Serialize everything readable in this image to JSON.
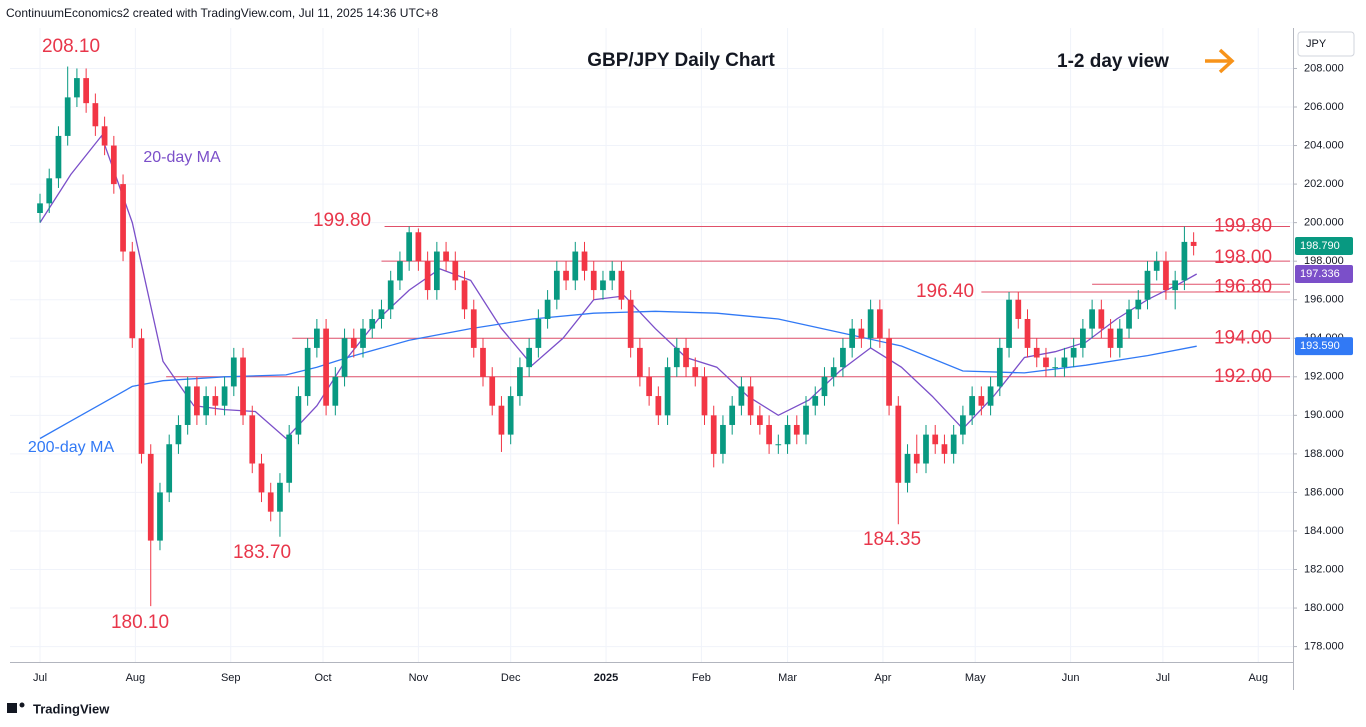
{
  "header": "ContinuumEconomics2 created with TradingView.com, Jul 11, 2025 14:36 UTC+8",
  "footer": "TradingView",
  "chart_data": {
    "type": "candlestick",
    "title": "GBP/JPY Daily Chart",
    "subtitle": "1-2 day view",
    "currency": "JPY",
    "up_color": "#089981",
    "down_color": "#f23645",
    "xlim": [
      -9.75,
      407.3
    ],
    "xticks": [
      {
        "value": 0,
        "label": "Jul"
      },
      {
        "value": 31,
        "label": "Aug"
      },
      {
        "value": 62,
        "label": "Sep"
      },
      {
        "value": 92,
        "label": "Oct"
      },
      {
        "value": 123,
        "label": "Nov"
      },
      {
        "value": 153,
        "label": "Dec"
      },
      {
        "value": 184,
        "label": "2025"
      },
      {
        "value": 215,
        "label": "Feb"
      },
      {
        "value": 243,
        "label": "Mar"
      },
      {
        "value": 274,
        "label": "Apr"
      },
      {
        "value": 304,
        "label": "May"
      },
      {
        "value": 335,
        "label": "Jun"
      },
      {
        "value": 365,
        "label": "Jul"
      },
      {
        "value": 396,
        "label": "Aug"
      }
    ],
    "ylim": [
      177.2,
      210.1
    ],
    "yticks": [
      {
        "value": 178,
        "label": "178.000"
      },
      {
        "value": 180,
        "label": "180.000"
      },
      {
        "value": 182,
        "label": "182.000"
      },
      {
        "value": 184,
        "label": "184.000"
      },
      {
        "value": 186,
        "label": "186.000"
      },
      {
        "value": 188,
        "label": "188.000"
      },
      {
        "value": 190,
        "label": "190.000"
      },
      {
        "value": 192,
        "label": "192.000"
      },
      {
        "value": 194,
        "label": "194.000"
      },
      {
        "value": 196,
        "label": "196.000"
      },
      {
        "value": 198,
        "label": "198.000"
      },
      {
        "value": 200,
        "label": "200.000"
      },
      {
        "value": 202,
        "label": "202.000"
      },
      {
        "value": 204,
        "label": "204.000"
      },
      {
        "value": 206,
        "label": "206.000"
      },
      {
        "value": 208,
        "label": "208.000"
      }
    ],
    "grid": true,
    "x": [
      0,
      3,
      6,
      9,
      12,
      15,
      18,
      21,
      24,
      27,
      30,
      33,
      36,
      39,
      42,
      45,
      48,
      51,
      54,
      57,
      60,
      63,
      66,
      69,
      72,
      75,
      78,
      81,
      84,
      87,
      90,
      93,
      96,
      99,
      102,
      105,
      108,
      111,
      114,
      117,
      120,
      123,
      126,
      129,
      132,
      135,
      138,
      141,
      144,
      147,
      150,
      153,
      156,
      159,
      162,
      165,
      168,
      171,
      174,
      177,
      180,
      183,
      186,
      189,
      192,
      195,
      198,
      201,
      204,
      207,
      210,
      213,
      216,
      219,
      222,
      225,
      228,
      231,
      234,
      237,
      240,
      243,
      246,
      249,
      252,
      255,
      258,
      261,
      264,
      267,
      270,
      273,
      276,
      279,
      282,
      285,
      288,
      291,
      294,
      297,
      300,
      303,
      306,
      309,
      312,
      315,
      318,
      321,
      324,
      327,
      330,
      333,
      336,
      339,
      342,
      345,
      348,
      351,
      354,
      357,
      360,
      363,
      366,
      369,
      372,
      375
    ],
    "ohlc": [
      [
        200.5,
        201.5,
        200.0,
        201.0
      ],
      [
        201.0,
        202.8,
        200.5,
        202.3
      ],
      [
        202.3,
        205.0,
        201.8,
        204.5
      ],
      [
        204.5,
        208.1,
        204.0,
        206.5
      ],
      [
        206.5,
        208.0,
        206.0,
        207.5
      ],
      [
        207.5,
        208.0,
        205.7,
        206.2
      ],
      [
        206.2,
        206.7,
        204.5,
        205.0
      ],
      [
        205.0,
        205.5,
        203.5,
        204.0
      ],
      [
        204.0,
        204.5,
        201.5,
        202.0
      ],
      [
        202.0,
        202.5,
        198.0,
        198.5
      ],
      [
        198.5,
        199.0,
        193.5,
        194.0
      ],
      [
        194.0,
        194.5,
        187.5,
        188.0
      ],
      [
        188.0,
        188.5,
        180.1,
        183.5
      ],
      [
        183.5,
        186.5,
        183.0,
        186.0
      ],
      [
        186.0,
        189.0,
        185.5,
        188.5
      ],
      [
        188.5,
        190.0,
        188.0,
        189.5
      ],
      [
        189.5,
        192.0,
        189.0,
        191.5
      ],
      [
        191.5,
        192.0,
        189.5,
        190.0
      ],
      [
        190.0,
        191.5,
        189.5,
        191.0
      ],
      [
        191.0,
        191.5,
        190.0,
        190.5
      ],
      [
        190.5,
        192.0,
        190.0,
        191.5
      ],
      [
        191.5,
        193.5,
        191.0,
        193.0
      ],
      [
        193.0,
        193.5,
        189.5,
        190.0
      ],
      [
        190.0,
        190.5,
        187.0,
        187.5
      ],
      [
        187.5,
        188.0,
        185.5,
        186.0
      ],
      [
        186.0,
        186.5,
        184.5,
        185.0
      ],
      [
        185.0,
        187.0,
        183.7,
        186.5
      ],
      [
        186.5,
        189.5,
        186.0,
        189.0
      ],
      [
        189.0,
        191.5,
        188.5,
        191.0
      ],
      [
        191.0,
        194.0,
        190.5,
        193.5
      ],
      [
        193.5,
        195.0,
        193.0,
        194.5
      ],
      [
        194.5,
        195.0,
        190.0,
        190.5
      ],
      [
        190.5,
        192.5,
        190.0,
        192.0
      ],
      [
        192.0,
        194.5,
        191.5,
        194.0
      ],
      [
        194.0,
        194.5,
        193.0,
        193.5
      ],
      [
        193.5,
        195.0,
        193.0,
        194.5
      ],
      [
        194.5,
        195.5,
        194.0,
        195.0
      ],
      [
        195.0,
        196.0,
        194.5,
        195.5
      ],
      [
        195.5,
        197.5,
        195.0,
        197.0
      ],
      [
        197.0,
        198.5,
        196.5,
        198.0
      ],
      [
        198.0,
        199.8,
        197.5,
        199.5
      ],
      [
        199.5,
        199.7,
        197.5,
        198.0
      ],
      [
        198.0,
        198.5,
        196.0,
        196.5
      ],
      [
        196.5,
        199.0,
        196.0,
        198.5
      ],
      [
        198.5,
        199.0,
        197.5,
        198.0
      ],
      [
        198.0,
        198.5,
        196.5,
        197.0
      ],
      [
        197.0,
        197.5,
        195.0,
        195.5
      ],
      [
        195.5,
        196.0,
        193.0,
        193.5
      ],
      [
        193.5,
        194.0,
        191.5,
        192.0
      ],
      [
        192.0,
        192.5,
        190.0,
        190.5
      ],
      [
        190.5,
        191.0,
        188.1,
        189.0
      ],
      [
        189.0,
        191.5,
        188.5,
        191.0
      ],
      [
        191.0,
        193.0,
        190.5,
        192.5
      ],
      [
        192.5,
        194.0,
        192.0,
        193.5
      ],
      [
        193.5,
        195.5,
        193.0,
        195.0
      ],
      [
        195.0,
        196.5,
        194.5,
        196.0
      ],
      [
        196.0,
        198.0,
        195.5,
        197.5
      ],
      [
        197.5,
        198.0,
        196.5,
        197.0
      ],
      [
        197.0,
        199.0,
        196.5,
        198.5
      ],
      [
        198.5,
        199.0,
        197.0,
        197.5
      ],
      [
        197.5,
        198.0,
        196.0,
        196.5
      ],
      [
        196.5,
        197.5,
        196.0,
        197.0
      ],
      [
        197.0,
        198.0,
        196.5,
        197.5
      ],
      [
        197.5,
        198.0,
        195.5,
        196.0
      ],
      [
        196.0,
        196.5,
        193.0,
        193.5
      ],
      [
        193.5,
        194.0,
        191.5,
        192.0
      ],
      [
        192.0,
        192.5,
        190.5,
        191.0
      ],
      [
        191.0,
        191.5,
        189.5,
        190.0
      ],
      [
        190.0,
        193.0,
        189.5,
        192.5
      ],
      [
        192.5,
        194.0,
        192.0,
        193.5
      ],
      [
        193.5,
        194.0,
        192.0,
        192.5
      ],
      [
        192.5,
        193.0,
        191.5,
        192.0
      ],
      [
        192.0,
        192.5,
        189.5,
        190.0
      ],
      [
        190.0,
        190.5,
        187.3,
        188.0
      ],
      [
        188.0,
        190.0,
        187.5,
        189.5
      ],
      [
        189.5,
        191.0,
        189.0,
        190.5
      ],
      [
        190.5,
        192.0,
        190.0,
        191.5
      ],
      [
        191.5,
        192.0,
        189.5,
        190.0
      ],
      [
        190.0,
        190.5,
        189.0,
        189.5
      ],
      [
        189.5,
        190.0,
        188.0,
        188.5
      ],
      [
        188.5,
        189.0,
        188.0,
        188.5
      ],
      [
        188.5,
        190.0,
        188.0,
        189.5
      ],
      [
        189.5,
        190.0,
        188.5,
        189.0
      ],
      [
        189.0,
        191.0,
        188.5,
        190.5
      ],
      [
        190.5,
        191.5,
        190.0,
        191.0
      ],
      [
        191.0,
        192.5,
        190.5,
        192.0
      ],
      [
        192.0,
        193.0,
        191.5,
        192.5
      ],
      [
        192.5,
        194.0,
        192.0,
        193.5
      ],
      [
        193.5,
        195.0,
        193.0,
        194.5
      ],
      [
        194.5,
        195.0,
        193.5,
        194.0
      ],
      [
        194.0,
        196.0,
        193.5,
        195.5
      ],
      [
        195.5,
        196.0,
        193.5,
        194.0
      ],
      [
        194.0,
        194.5,
        190.0,
        190.5
      ],
      [
        190.5,
        191.0,
        184.35,
        186.5
      ],
      [
        186.5,
        188.5,
        186.0,
        188.0
      ],
      [
        188.0,
        189.0,
        187.0,
        187.5
      ],
      [
        187.5,
        189.5,
        187.0,
        189.0
      ],
      [
        189.0,
        189.5,
        188.0,
        188.5
      ],
      [
        188.5,
        189.0,
        187.5,
        188.0
      ],
      [
        188.0,
        189.5,
        187.5,
        189.0
      ],
      [
        189.0,
        190.5,
        188.5,
        190.0
      ],
      [
        190.0,
        191.5,
        189.5,
        191.0
      ],
      [
        191.0,
        191.5,
        190.0,
        190.5
      ],
      [
        190.5,
        192.0,
        190.0,
        191.5
      ],
      [
        191.5,
        194.0,
        191.0,
        193.5
      ],
      [
        193.5,
        196.4,
        193.0,
        196.0
      ],
      [
        196.0,
        196.4,
        194.5,
        195.0
      ],
      [
        195.0,
        195.5,
        193.0,
        193.5
      ],
      [
        193.5,
        194.0,
        192.5,
        193.0
      ],
      [
        193.0,
        193.5,
        192.0,
        192.5
      ],
      [
        192.5,
        193.0,
        192.0,
        192.5
      ],
      [
        192.5,
        193.5,
        192.0,
        193.0
      ],
      [
        193.0,
        194.0,
        192.5,
        193.5
      ],
      [
        193.5,
        195.0,
        193.0,
        194.5
      ],
      [
        194.5,
        196.0,
        194.0,
        195.5
      ],
      [
        195.5,
        196.0,
        194.0,
        194.5
      ],
      [
        194.5,
        195.0,
        193.0,
        193.5
      ],
      [
        193.5,
        195.0,
        193.0,
        194.5
      ],
      [
        194.5,
        196.0,
        194.0,
        195.5
      ],
      [
        195.5,
        196.5,
        195.0,
        196.0
      ],
      [
        196.0,
        198.0,
        195.5,
        197.5
      ],
      [
        197.5,
        198.5,
        197.0,
        198.0
      ],
      [
        198.0,
        198.5,
        196.0,
        196.5
      ],
      [
        196.5,
        197.5,
        195.5,
        197.0
      ],
      [
        197.0,
        199.8,
        196.5,
        199.0
      ],
      [
        199.0,
        199.5,
        198.3,
        198.79
      ]
    ],
    "last_label": "198.790",
    "series": [
      {
        "name": "20-day MA",
        "color": "#7b4fc9",
        "x": [
          0,
          10,
          20,
          30,
          40,
          50,
          60,
          70,
          80,
          90,
          100,
          110,
          120,
          130,
          140,
          150,
          160,
          170,
          180,
          190,
          200,
          210,
          220,
          230,
          240,
          250,
          260,
          270,
          280,
          290,
          300,
          310,
          320,
          330,
          340,
          350,
          360,
          370,
          376
        ],
        "values": [
          200.0,
          202.5,
          204.5,
          200.0,
          192.8,
          190.5,
          190.3,
          190.2,
          188.8,
          190.5,
          193.0,
          195.0,
          196.5,
          197.6,
          197.0,
          194.5,
          192.6,
          194.0,
          196.0,
          196.2,
          194.5,
          193.0,
          192.5,
          191.0,
          190.0,
          190.8,
          192.3,
          193.5,
          192.5,
          191.0,
          189.3,
          191.0,
          193.0,
          193.3,
          193.8,
          195.0,
          196.0,
          196.8,
          197.336
        ],
        "value_label": "197.336"
      },
      {
        "name": "200-day MA",
        "color": "#3179f5",
        "x": [
          0,
          10,
          20,
          30,
          40,
          60,
          80,
          90,
          100,
          120,
          140,
          160,
          180,
          200,
          220,
          240,
          260,
          280,
          300,
          320,
          340,
          360,
          376
        ],
        "values": [
          188.8,
          189.7,
          190.6,
          191.5,
          191.8,
          192.0,
          192.1,
          192.5,
          193.0,
          193.9,
          194.5,
          195.0,
          195.3,
          195.4,
          195.3,
          195.0,
          194.3,
          193.6,
          192.3,
          192.2,
          192.6,
          193.1,
          193.59
        ],
        "value_label": "193.590"
      }
    ],
    "levels": [
      {
        "value": 199.8,
        "label": "199.80",
        "from": 112
      },
      {
        "value": 198.0,
        "label": "198.00",
        "from": 111
      },
      {
        "value": 196.8,
        "label": "196.80",
        "from": 342
      },
      {
        "value": 196.4,
        "label": "196.40",
        "from": 306
      },
      {
        "value": 194.0,
        "label": "194.00",
        "from": 82
      },
      {
        "value": 192.0,
        "label": "192.00",
        "from": 41
      }
    ],
    "annotations": [
      "208.10",
      "180.10",
      "183.70",
      "184.35"
    ]
  }
}
